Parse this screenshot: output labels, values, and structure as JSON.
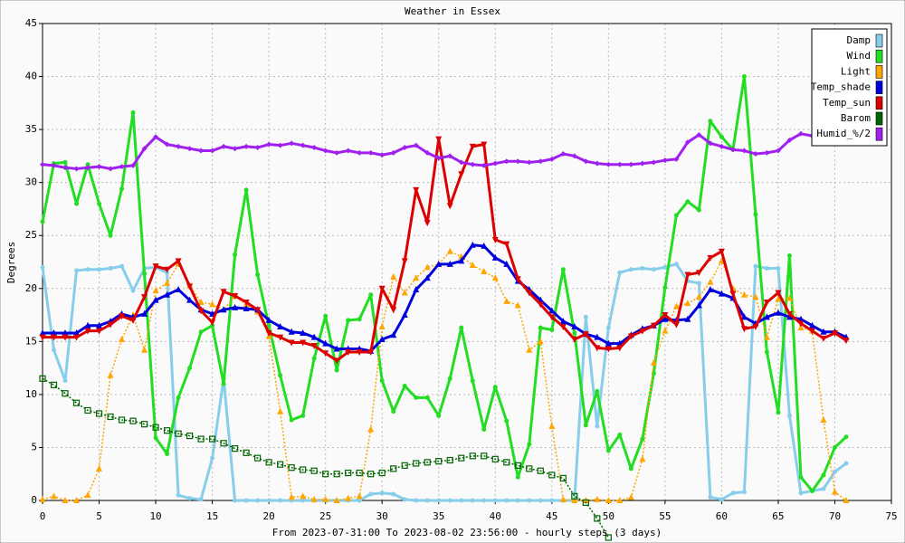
{
  "chart_data": {
    "type": "line",
    "title": "Weather in Essex",
    "ylabel": "Degrees",
    "xlabel": "From 2023-07-31:00 To 2023-08-02 23:56:00 - hourly steps (3 days)",
    "x": [
      0,
      1,
      2,
      3,
      4,
      5,
      6,
      7,
      8,
      9,
      10,
      11,
      12,
      13,
      14,
      15,
      16,
      17,
      18,
      19,
      20,
      21,
      22,
      23,
      24,
      25,
      26,
      27,
      28,
      29,
      30,
      31,
      32,
      33,
      34,
      35,
      36,
      37,
      38,
      39,
      40,
      41,
      42,
      43,
      44,
      45,
      46,
      47,
      48,
      49,
      50,
      51,
      52,
      53,
      54,
      55,
      56,
      57,
      58,
      59,
      60,
      61,
      62,
      63,
      64,
      65,
      66,
      67,
      68,
      69,
      70,
      71
    ],
    "xlim": [
      0,
      75
    ],
    "xticks": [
      0,
      5,
      10,
      15,
      20,
      25,
      30,
      35,
      40,
      45,
      50,
      55,
      60,
      65,
      70,
      75
    ],
    "ylim": [
      0,
      45
    ],
    "yticks": [
      0,
      5,
      10,
      15,
      20,
      25,
      30,
      35,
      40,
      45
    ],
    "grid": true,
    "legend": "upper right",
    "series": [
      {
        "name": "Damp",
        "color": "#87ceeb",
        "marker": "dot",
        "style": "solid",
        "values": [
          22,
          14.2,
          11.3,
          21.7,
          21.8,
          21.8,
          21.9,
          22.1,
          19.8,
          21.9,
          22,
          21.5,
          0.5,
          0.2,
          0.1,
          4,
          11.5,
          0,
          0,
          0,
          0,
          0,
          0,
          0,
          0,
          0,
          0,
          0,
          0,
          0.6,
          0.7,
          0.6,
          0.1,
          0,
          0,
          0,
          0,
          0,
          0,
          0,
          0,
          0,
          0,
          0,
          0,
          0,
          0,
          0,
          17.3,
          7,
          16.3,
          21.5,
          21.8,
          21.9,
          21.8,
          22,
          22.3,
          20.7,
          20.5,
          0.3,
          0.1,
          0.7,
          0.8,
          22.1,
          21.9,
          21.9,
          8,
          0.7,
          0.9,
          1.1,
          2.7,
          3.5
        ]
      },
      {
        "name": "Wind",
        "color": "#22dd22",
        "marker": "dot",
        "style": "solid",
        "values": [
          26.3,
          31.8,
          31.9,
          28,
          31.7,
          28,
          25,
          29.4,
          36.6,
          21.4,
          5.9,
          4.4,
          9.7,
          12.5,
          15.9,
          16.5,
          11,
          23.2,
          29.3,
          21.3,
          16.5,
          11.8,
          7.6,
          8,
          13.4,
          17.4,
          12.3,
          17,
          17.1,
          19.4,
          11.3,
          8.4,
          10.8,
          9.7,
          9.7,
          8,
          11.5,
          16.3,
          11.3,
          6.7,
          10.7,
          7.5,
          2.2,
          5.3,
          16.3,
          16.1,
          21.8,
          15.8,
          7.1,
          10.3,
          4.7,
          6.2,
          3,
          5.8,
          12,
          20.1,
          26.9,
          28.2,
          27.4,
          35.8,
          34.3,
          33.1,
          40,
          27,
          14,
          8.3,
          23.1,
          2.2,
          0.9,
          2.4,
          5,
          6
        ]
      },
      {
        "name": "Light",
        "color": "#ffa500",
        "marker": "triangle-up",
        "style": "dotted",
        "values": [
          0.1,
          0.4,
          0,
          0,
          0.5,
          3,
          11.8,
          15.2,
          17.5,
          14.2,
          19.8,
          20.5,
          22.3,
          20.3,
          18.7,
          18.5,
          18,
          19.3,
          18.5,
          17.8,
          15.5,
          8.4,
          0.3,
          0.4,
          0.1,
          0.1,
          0,
          0.2,
          0.4,
          6.7,
          16.4,
          21.1,
          19.6,
          21,
          22,
          22.3,
          23.5,
          23,
          22.2,
          21.6,
          21,
          18.8,
          18.4,
          14.2,
          15,
          7,
          0.1,
          0,
          0,
          0.1,
          0,
          0,
          0.3,
          3.9,
          13,
          16,
          18.3,
          18.6,
          19.2,
          20.6,
          22.6,
          20,
          19.4,
          19.2,
          15.4,
          19,
          19.1,
          16.3,
          16,
          7.6,
          0.8,
          0
        ]
      },
      {
        "name": "Temp_shade",
        "color": "#0000dd",
        "marker": "triangle-up",
        "style": "solid",
        "values": [
          15.8,
          15.8,
          15.8,
          15.8,
          16.5,
          16.5,
          16.9,
          17.6,
          17.3,
          17.6,
          18.9,
          19.4,
          19.9,
          18.9,
          18,
          17.6,
          18,
          18.2,
          18.1,
          18,
          17,
          16.4,
          15.9,
          15.8,
          15.4,
          14.8,
          14.3,
          14.3,
          14.3,
          14.1,
          15.2,
          15.6,
          17.5,
          19.9,
          21,
          22.3,
          22.3,
          22.6,
          24.1,
          24,
          22.9,
          22.3,
          20.7,
          19.9,
          18.9,
          17.9,
          16.9,
          16.4,
          15.7,
          15.4,
          14.8,
          14.8,
          15.6,
          16.2,
          16.5,
          17.1,
          17,
          17.1,
          18.4,
          19.9,
          19.5,
          19.1,
          17.3,
          16.7,
          17.3,
          17.7,
          17.3,
          17.1,
          16.5,
          15.9,
          15.9,
          15.4
        ]
      },
      {
        "name": "Temp_sun",
        "color": "#dd0000",
        "marker": "triangle-down",
        "style": "solid",
        "values": [
          15.4,
          15.4,
          15.4,
          15.4,
          16,
          16,
          16.6,
          17.4,
          17,
          19.2,
          22.1,
          21.8,
          22.6,
          20.2,
          17.9,
          16.8,
          19.7,
          19.3,
          18.7,
          18,
          15.8,
          15.4,
          14.9,
          14.9,
          14.6,
          13.9,
          13.2,
          14,
          14,
          14,
          20,
          18,
          22.6,
          29.3,
          26.2,
          34.1,
          27.8,
          30.8,
          33.4,
          33.6,
          24.6,
          24.2,
          20.9,
          19.6,
          18.5,
          17.3,
          16.4,
          15.2,
          15.7,
          14.4,
          14.3,
          14.4,
          15.5,
          16,
          16.5,
          17.5,
          16.6,
          21.3,
          21.5,
          22.9,
          23.5,
          19.5,
          16.2,
          16.4,
          18.7,
          19.6,
          17.6,
          16.7,
          16,
          15.3,
          15.8,
          15.1
        ]
      },
      {
        "name": "Barom",
        "color": "#006400",
        "marker": "square",
        "style": "dotted",
        "values": [
          11.5,
          10.9,
          10.1,
          9.2,
          8.5,
          8.2,
          7.9,
          7.6,
          7.5,
          7.2,
          6.9,
          6.6,
          6.3,
          6.1,
          5.8,
          5.8,
          5.4,
          4.9,
          4.5,
          4,
          3.6,
          3.4,
          3.1,
          2.9,
          2.8,
          2.5,
          2.5,
          2.6,
          2.6,
          2.5,
          2.6,
          3,
          3.3,
          3.5,
          3.6,
          3.7,
          3.8,
          4,
          4.2,
          4.2,
          3.9,
          3.6,
          3.3,
          3,
          2.8,
          2.4,
          2.1,
          0.4,
          -0.2,
          -1.7,
          -3.5,
          null,
          null,
          null,
          null,
          null,
          null,
          null,
          null,
          null,
          null,
          null,
          null,
          null,
          null,
          null,
          null,
          null,
          null,
          null,
          null,
          null
        ]
      },
      {
        "name": "Humid_%/2",
        "color": "#a020f0",
        "marker": "diamond",
        "style": "solid",
        "values": [
          31.7,
          31.6,
          31.4,
          31.3,
          31.4,
          31.5,
          31.3,
          31.5,
          31.6,
          33.2,
          34.3,
          33.6,
          33.4,
          33.2,
          33,
          33,
          33.4,
          33.2,
          33.4,
          33.3,
          33.6,
          33.5,
          33.7,
          33.5,
          33.3,
          33,
          32.8,
          33,
          32.8,
          32.8,
          32.6,
          32.8,
          33.3,
          33.5,
          32.8,
          32.3,
          32.5,
          31.9,
          31.7,
          31.6,
          31.8,
          32,
          32,
          31.9,
          32,
          32.2,
          32.7,
          32.5,
          32,
          31.8,
          31.7,
          31.7,
          31.7,
          31.8,
          31.9,
          32.1,
          32.2,
          33.8,
          34.5,
          33.7,
          33.4,
          33.1,
          33,
          32.7,
          32.8,
          33,
          34,
          34.6,
          34.4,
          34.4,
          34.3,
          34.2
        ]
      }
    ]
  }
}
